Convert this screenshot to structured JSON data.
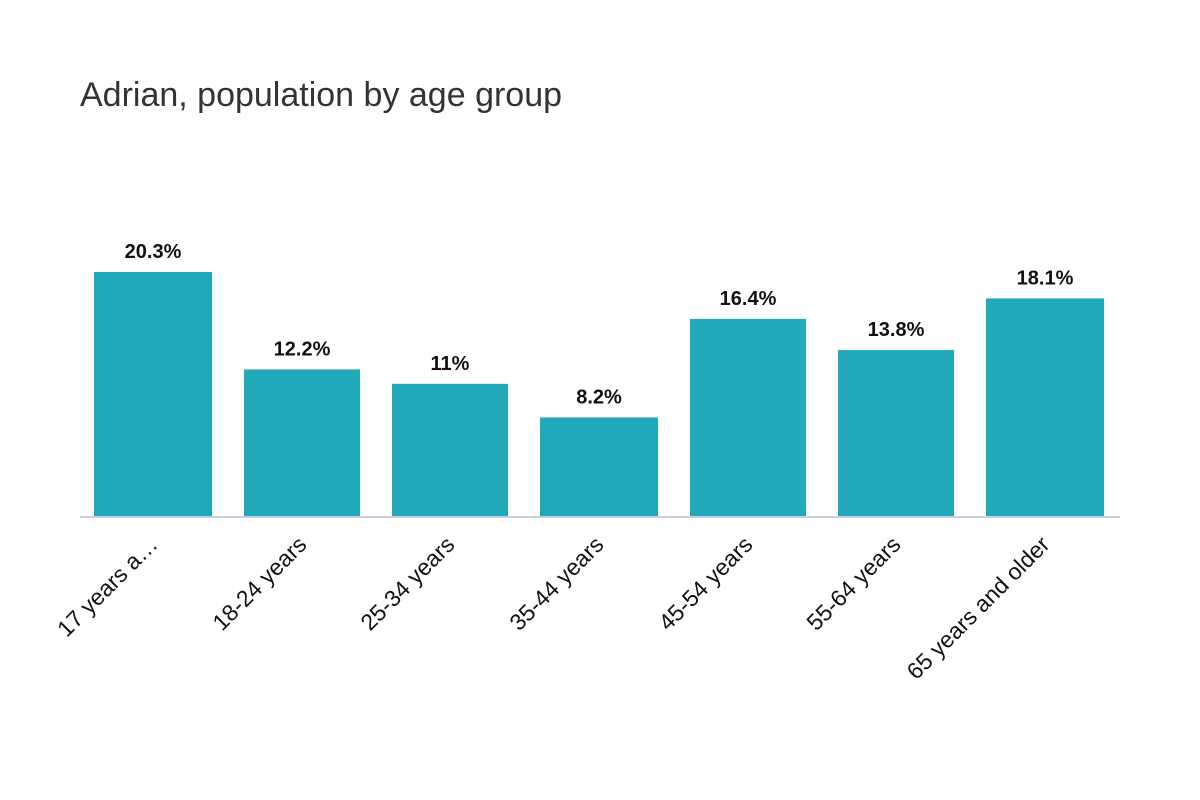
{
  "chart_data": {
    "type": "bar",
    "title": "Adrian, population by age group",
    "categories": [
      "17 years a…",
      "18-24 years",
      "25-34 years",
      "35-44 years",
      "45-54 years",
      "55-64 years",
      "65 years and older"
    ],
    "values": [
      20.3,
      12.2,
      11,
      8.2,
      16.4,
      13.8,
      18.1
    ],
    "value_labels": [
      "20.3%",
      "12.2%",
      "11%",
      "8.2%",
      "16.4%",
      "13.8%",
      "18.1%"
    ],
    "xlabel": "",
    "ylabel": "",
    "ylim": [
      0,
      20.3
    ],
    "grid": false,
    "legend": "none",
    "bar_color": "#1fa9b9",
    "axis_color": "#c8cfe0"
  }
}
